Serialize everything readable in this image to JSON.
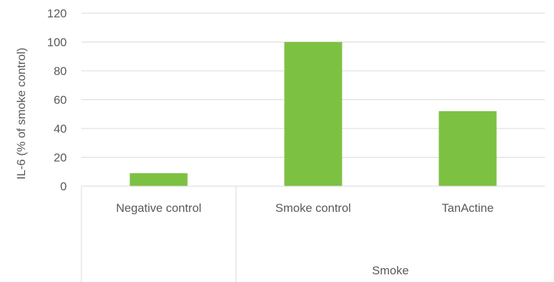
{
  "chart_data": {
    "type": "bar",
    "categories": [
      "Negative control",
      "Smoke control",
      "TanActine"
    ],
    "group_label": "Smoke",
    "grouped_categories": [
      "Smoke control",
      "TanActine"
    ],
    "values": [
      9,
      100,
      52
    ],
    "ylabel": "IL-6 (% of smoke control)",
    "xlabel": "",
    "title": "",
    "ylim": [
      0,
      120
    ],
    "yticks": [
      0,
      20,
      40,
      60,
      80,
      100,
      120
    ],
    "grid": true,
    "legend": "none",
    "bar_color": "#7dc142",
    "grid_color": "#d9d9d9",
    "text_color": "#595959"
  }
}
